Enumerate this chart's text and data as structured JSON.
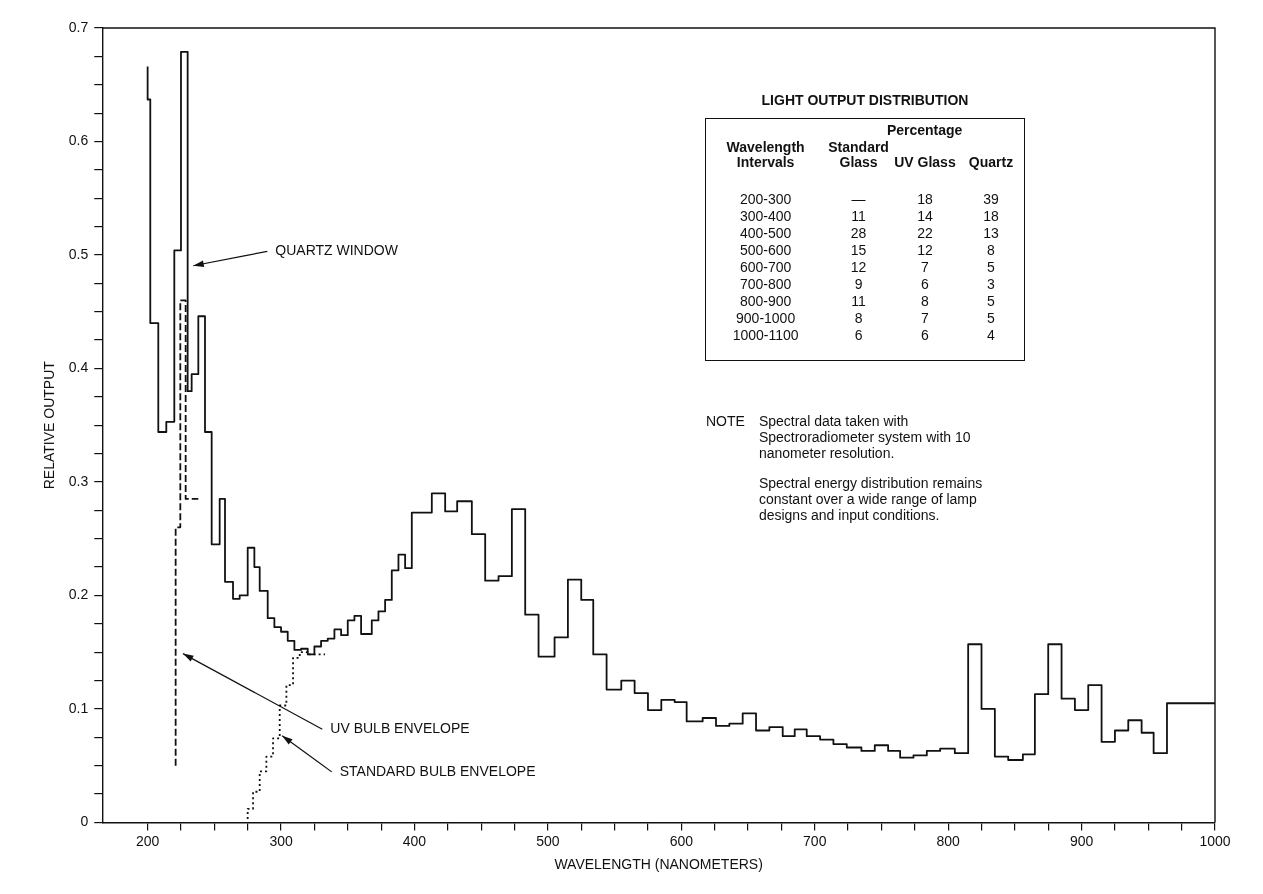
{
  "chart_data": [
    {
      "type": "step",
      "xlabel": "WAVELENGTH (NANOMETERS)",
      "ylabel": "RELATIVE OUTPUT",
      "xlim": [
        166,
        1000
      ],
      "ylim": [
        0,
        0.7
      ],
      "marker": "none",
      "xticks": [
        200,
        {
          "value": 225,
          "label": null
        },
        {
          "value": 250,
          "label": null
        },
        {
          "value": 275,
          "label": null
        },
        300,
        {
          "value": 325,
          "label": null
        },
        {
          "value": 350,
          "label": null
        },
        {
          "value": 375,
          "label": null
        },
        400,
        {
          "value": 425,
          "label": null
        },
        {
          "value": 450,
          "label": null
        },
        {
          "value": 475,
          "label": null
        },
        500,
        {
          "value": 525,
          "label": null
        },
        {
          "value": 550,
          "label": null
        },
        {
          "value": 575,
          "label": null
        },
        600,
        {
          "value": 625,
          "label": null
        },
        {
          "value": 650,
          "label": null
        },
        {
          "value": 675,
          "label": null
        },
        700,
        {
          "value": 725,
          "label": null
        },
        {
          "value": 750,
          "label": null
        },
        {
          "value": 775,
          "label": null
        },
        800,
        {
          "value": 825,
          "label": null
        },
        {
          "value": 850,
          "label": null
        },
        {
          "value": 875,
          "label": null
        },
        900,
        {
          "value": 925,
          "label": null
        },
        {
          "value": 950,
          "label": null
        },
        {
          "value": 975,
          "label": null
        },
        1000
      ],
      "yticks": [
        0,
        {
          "value": 0.025,
          "label": null
        },
        {
          "value": 0.05,
          "label": null
        },
        {
          "value": 0.075,
          "label": null
        },
        0.1,
        {
          "value": 0.125,
          "label": null
        },
        {
          "value": 0.15,
          "label": null
        },
        {
          "value": 0.175,
          "label": null
        },
        0.2,
        {
          "value": 0.225,
          "label": null
        },
        {
          "value": 0.25,
          "label": null
        },
        {
          "value": 0.275,
          "label": null
        },
        0.3,
        {
          "value": 0.325,
          "label": null
        },
        {
          "value": 0.35,
          "label": null
        },
        {
          "value": 0.375,
          "label": null
        },
        0.4,
        {
          "value": 0.425,
          "label": null
        },
        {
          "value": 0.45,
          "label": null
        },
        {
          "value": 0.475,
          "label": null
        },
        0.5,
        {
          "value": 0.525,
          "label": null
        },
        {
          "value": 0.55,
          "label": null
        },
        {
          "value": 0.575,
          "label": null
        },
        0.6,
        {
          "value": 0.625,
          "label": null
        },
        {
          "value": 0.65,
          "label": null
        },
        {
          "value": 0.675,
          "label": null
        },
        0.7
      ],
      "series": [
        {
          "color": "#111111",
          "line_style": "solid",
          "x": [
            200,
            202,
            208,
            214,
            220,
            225,
            230,
            233,
            238,
            243,
            248,
            254,
            258,
            264,
            269,
            275,
            280,
            284,
            290,
            295,
            300,
            305,
            310,
            315,
            320,
            325,
            330,
            335,
            340,
            345,
            350,
            355,
            360,
            368,
            373,
            378,
            383,
            388,
            393,
            398,
            413,
            423,
            432,
            443,
            453,
            463,
            473,
            483,
            493,
            505,
            515,
            525,
            534,
            544,
            555,
            565,
            575,
            585,
            595,
            604,
            616,
            626,
            636,
            646,
            656,
            666,
            676,
            685,
            694,
            704,
            714,
            724,
            735,
            745,
            755,
            764,
            774,
            784,
            794,
            805,
            815,
            825,
            835,
            845,
            856,
            865,
            875,
            885,
            895,
            905,
            915,
            925,
            935,
            945,
            954,
            964,
            974,
            1000
          ],
          "values": [
            0.666,
            0.637,
            0.44,
            0.344,
            0.353,
            0.504,
            0.679,
            0.38,
            0.395,
            0.446,
            0.344,
            0.245,
            0.285,
            0.212,
            0.197,
            0.2,
            0.242,
            0.225,
            0.204,
            0.18,
            0.172,
            0.168,
            0.16,
            0.152,
            0.153,
            0.148,
            0.155,
            0.16,
            0.162,
            0.17,
            0.165,
            0.178,
            0.182,
            0.166,
            0.178,
            0.186,
            0.196,
            0.222,
            0.236,
            0.224,
            0.273,
            0.29,
            0.274,
            0.283,
            0.254,
            0.213,
            0.217,
            0.276,
            0.183,
            0.146,
            0.163,
            0.214,
            0.196,
            0.148,
            0.117,
            0.125,
            0.114,
            0.099,
            0.108,
            0.106,
            0.089,
            0.092,
            0.085,
            0.087,
            0.096,
            0.081,
            0.084,
            0.076,
            0.082,
            0.076,
            0.073,
            0.069,
            0.066,
            0.063,
            0.068,
            0.063,
            0.057,
            0.059,
            0.063,
            0.065,
            0.061,
            0.157,
            0.1,
            0.058,
            0.055,
            0.06,
            0.113,
            0.157,
            0.109,
            0.099,
            0.121,
            0.071,
            0.081,
            0.09,
            0.079,
            0.061,
            0.105,
            0.105
          ]
        },
        {
          "color": "#111111",
          "line_style": "dashed",
          "x": [
            221,
            224.5,
            228.5,
            233,
            238
          ],
          "values": [
            0.05,
            0.26,
            0.46,
            0.285,
            0.285
          ]
        },
        {
          "color": "#111111",
          "line_style": "dotted",
          "x": [
            275,
            279,
            284,
            289,
            294,
            299,
            304,
            309,
            314,
            320,
            326,
            333
          ],
          "values": [
            0.003,
            0.012,
            0.027,
            0.045,
            0.058,
            0.074,
            0.103,
            0.121,
            0.145,
            0.15,
            0.148,
            0.148
          ]
        }
      ],
      "annotations": [
        {
          "text": "QUARTZ WINDOW",
          "x": 232,
          "y": 0.49
        },
        {
          "text": "UV BULB ENVELOPE",
          "x": 224.5,
          "y": 0.15
        },
        {
          "text": "STANDARD BULB ENVELOPE",
          "x": 299,
          "y": 0.078
        },
        "NOTE",
        "Spectral data taken with Spectroradiometer system with 10 nanometer resolution.",
        "Spectral energy distribution remains constant over a wide range of lamp designs and input conditions."
      ]
    },
    {
      "type": "heatmap",
      "title": "LIGHT OUTPUT DISTRIBUTION",
      "xlabel": "Percentage",
      "ylabel": "Wavelength Intervals",
      "categories": [
        "Standard Glass",
        "UV Glass",
        "Quartz"
      ],
      "y_categories": [
        "200-300",
        "300-400",
        "400-500",
        "500-600",
        "600-700",
        "700-800",
        "800-900",
        "900-1000",
        "1000-1100"
      ],
      "cells": [
        [
          null,
          18,
          39
        ],
        [
          11,
          14,
          18
        ],
        [
          28,
          22,
          13
        ],
        [
          15,
          12,
          8
        ],
        [
          12,
          7,
          5
        ],
        [
          9,
          6,
          3
        ],
        [
          11,
          8,
          5
        ],
        [
          8,
          7,
          5
        ],
        [
          6,
          6,
          4
        ]
      ],
      "cell_labels": [
        [
          "—",
          "18",
          "39"
        ],
        [
          "11",
          "14",
          "18"
        ],
        [
          "28",
          "22",
          "13"
        ],
        [
          "15",
          "12",
          "8"
        ],
        [
          "12",
          "7",
          "5"
        ],
        [
          "9",
          "6",
          "3"
        ],
        [
          "11",
          "8",
          "5"
        ],
        [
          "8",
          "7",
          "5"
        ],
        [
          "6",
          "6",
          "4"
        ]
      ]
    }
  ]
}
